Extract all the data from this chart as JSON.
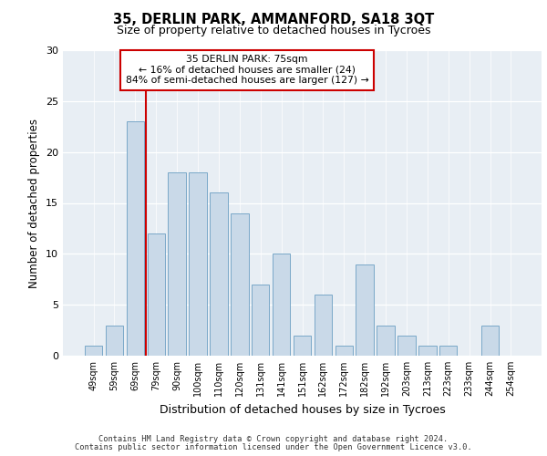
{
  "title1": "35, DERLIN PARK, AMMANFORD, SA18 3QT",
  "title2": "Size of property relative to detached houses in Tycroes",
  "xlabel": "Distribution of detached houses by size in Tycroes",
  "ylabel": "Number of detached properties",
  "categories": [
    "49sqm",
    "59sqm",
    "69sqm",
    "79sqm",
    "90sqm",
    "100sqm",
    "110sqm",
    "120sqm",
    "131sqm",
    "141sqm",
    "151sqm",
    "162sqm",
    "172sqm",
    "182sqm",
    "192sqm",
    "203sqm",
    "213sqm",
    "223sqm",
    "233sqm",
    "244sqm",
    "254sqm"
  ],
  "values": [
    1,
    3,
    23,
    12,
    18,
    18,
    16,
    14,
    7,
    10,
    2,
    6,
    1,
    9,
    3,
    2,
    1,
    1,
    0,
    3,
    0
  ],
  "bar_color": "#c9d9e8",
  "bar_edge_color": "#7aa8c8",
  "marker_line_color": "#cc0000",
  "annotation_text": "35 DERLIN PARK: 75sqm\n← 16% of detached houses are smaller (24)\n84% of semi-detached houses are larger (127) →",
  "ylim": [
    0,
    30
  ],
  "yticks": [
    0,
    5,
    10,
    15,
    20,
    25,
    30
  ],
  "footer1": "Contains HM Land Registry data © Crown copyright and database right 2024.",
  "footer2": "Contains public sector information licensed under the Open Government Licence v3.0.",
  "plot_bg_color": "#e8eef4"
}
